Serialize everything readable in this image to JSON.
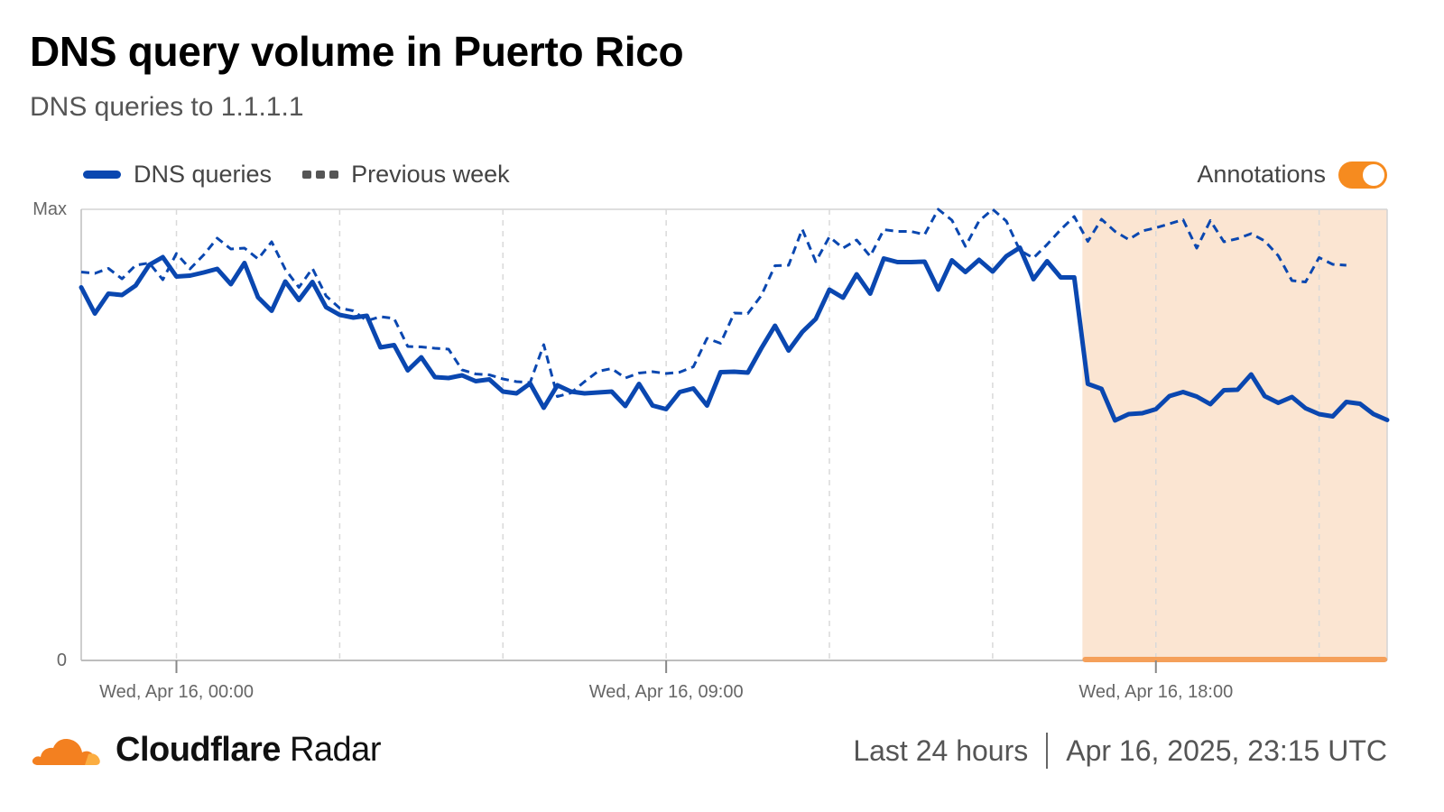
{
  "header": {
    "title": "DNS query volume in Puerto Rico",
    "subtitle": "DNS queries to 1.1.1.1"
  },
  "legend": {
    "current_label": "DNS queries",
    "previous_label": "Previous week",
    "annotations_label": "Annotations",
    "annotations_enabled": true
  },
  "footer": {
    "brand_main": "Cloudflare",
    "brand_suffix": "Radar",
    "range": "Last 24 hours",
    "timestamp": "Apr 16, 2025, 23:15 UTC"
  },
  "colors": {
    "current": "#0a47b0",
    "previous": "#0a47b0",
    "annotation_fill": "#fbe5d2",
    "annotation_bar": "#f5a05a",
    "accent": "#f68b1f"
  },
  "chart_data": {
    "type": "line",
    "title": "DNS query volume in Puerto Rico",
    "ylabel": "",
    "xlabel": "",
    "yticks": [
      "Max",
      "0"
    ],
    "ylim": [
      0,
      100
    ],
    "x_hours_from": -1.75,
    "x_hours_to": 22.25,
    "xtick_labels": [
      {
        "hour": 0,
        "label": "Wed, Apr 16, 00:00"
      },
      {
        "hour": 9,
        "label": "Wed, Apr 16, 09:00"
      },
      {
        "hour": 18,
        "label": "Wed, Apr 16, 18:00"
      }
    ],
    "minor_grid_hours": [
      0,
      3,
      6,
      9,
      12,
      15,
      18,
      21
    ],
    "annotation": {
      "start_hour": 16.65,
      "end_hour": 22.25
    },
    "series": [
      {
        "name": "DNS queries",
        "style": "solid",
        "values": [
          82.7,
          76.9,
          81.3,
          81.0,
          83.1,
          87.7,
          89.4,
          85.1,
          85.3,
          86.0,
          86.8,
          83.4,
          88.1,
          80.5,
          77.5,
          84.0,
          79.9,
          83.9,
          78.3,
          76.6,
          76.0,
          76.4,
          69.4,
          69.9,
          64.3,
          67.2,
          62.8,
          62.6,
          63.2,
          61.9,
          62.3,
          59.6,
          59.2,
          61.4,
          56.0,
          61.0,
          59.6,
          59.2,
          59.4,
          59.6,
          56.4,
          61.3,
          56.5,
          55.7,
          59.5,
          60.3,
          56.5,
          63.9,
          64.0,
          63.8,
          69.2,
          74.2,
          68.7,
          72.8,
          75.7,
          82.2,
          80.4,
          85.6,
          81.3,
          89.1,
          88.3,
          88.3,
          88.4,
          82.2,
          88.7,
          86.1,
          88.8,
          86.2,
          89.6,
          91.5,
          84.5,
          88.5,
          84.9,
          84.9,
          61.3,
          60.2,
          53.2,
          54.6,
          54.8,
          55.7,
          58.6,
          59.5,
          58.5,
          56.8,
          59.9,
          60.0,
          63.4,
          58.6,
          57.1,
          58.4,
          55.9,
          54.6,
          54.1,
          57.3,
          56.9,
          54.6,
          53.3
        ]
      },
      {
        "name": "Previous week",
        "style": "dashed",
        "values": [
          86.1,
          85.8,
          86.9,
          84.6,
          87.6,
          88.1,
          84.4,
          90.2,
          86.8,
          89.9,
          93.6,
          91.2,
          91.4,
          89.0,
          92.8,
          86.7,
          82.7,
          86.9,
          80.8,
          78.1,
          77.5,
          75.3,
          76.2,
          75.8,
          69.6,
          69.5,
          69.2,
          69.0,
          64.4,
          63.5,
          63.3,
          62.4,
          61.8,
          61.6,
          70.0,
          58.5,
          59.3,
          61.8,
          64.1,
          64.7,
          62.6,
          63.7,
          64.0,
          63.6,
          63.9,
          65.1,
          71.4,
          70.3,
          77.0,
          76.9,
          80.9,
          87.5,
          87.6,
          95.6,
          88.4,
          93.9,
          91.4,
          93.2,
          89.6,
          95.5,
          95.1,
          95.1,
          94.4,
          100.0,
          97.6,
          91.8,
          97.4,
          100.0,
          97.4,
          90.9,
          89.2,
          92.2,
          95.5,
          98.4,
          92.9,
          97.8,
          95.1,
          93.3,
          95.2,
          95.9,
          96.8,
          97.7,
          91.4,
          97.5,
          92.8,
          93.5,
          94.6,
          93.0,
          89.7,
          84.2,
          83.9,
          89.3,
          87.8,
          87.6
        ]
      }
    ]
  }
}
